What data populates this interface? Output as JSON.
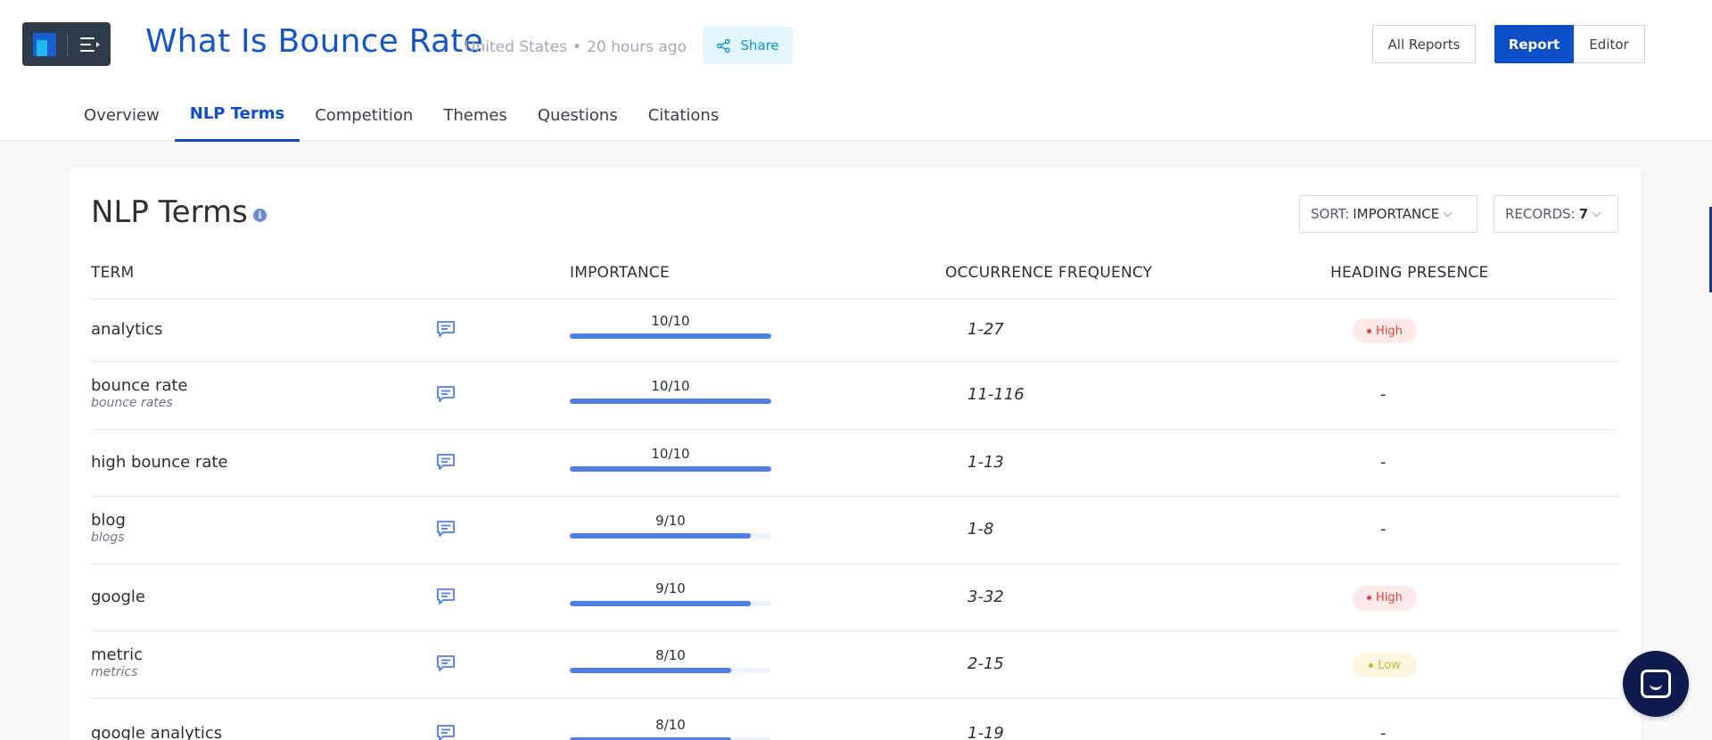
{
  "header": {
    "title": "What Is Bounce Rate",
    "location": "United States",
    "separator": "•",
    "time_ago": "20 hours ago",
    "share_label": "Share",
    "all_reports_label": "All Reports",
    "report_label": "Report",
    "editor_label": "Editor"
  },
  "tabs": [
    {
      "label": "Overview",
      "active": false
    },
    {
      "label": "NLP Terms",
      "active": true
    },
    {
      "label": "Competition",
      "active": false
    },
    {
      "label": "Themes",
      "active": false
    },
    {
      "label": "Questions",
      "active": false
    },
    {
      "label": "Citations",
      "active": false
    }
  ],
  "panel": {
    "title": "NLP Terms",
    "info_glyph": "i",
    "sort_label": "SORT:",
    "sort_value": "IMPORTANCE",
    "records_label": "RECORDS:",
    "records_value": "7"
  },
  "table": {
    "columns": [
      "TERM",
      "IMPORTANCE",
      "OCCURRENCE FREQUENCY",
      "HEADING PRESENCE"
    ],
    "rows": [
      {
        "term": "analytics",
        "variant": "",
        "importance": "10/10",
        "importance_fraction": 1.0,
        "frequency": "1-27",
        "heading": "High"
      },
      {
        "term": "bounce rate",
        "variant": "bounce rates",
        "importance": "10/10",
        "importance_fraction": 1.0,
        "frequency": "11-116",
        "heading": "-"
      },
      {
        "term": "high bounce rate",
        "variant": "",
        "importance": "10/10",
        "importance_fraction": 1.0,
        "frequency": "1-13",
        "heading": "-"
      },
      {
        "term": "blog",
        "variant": "blogs",
        "importance": "9/10",
        "importance_fraction": 0.9,
        "frequency": "1-8",
        "heading": "-"
      },
      {
        "term": "google",
        "variant": "",
        "importance": "9/10",
        "importance_fraction": 0.9,
        "frequency": "3-32",
        "heading": "High"
      },
      {
        "term": "metric",
        "variant": "metrics",
        "importance": "8/10",
        "importance_fraction": 0.8,
        "frequency": "2-15",
        "heading": "Low"
      },
      {
        "term": "google analytics",
        "variant": "",
        "importance": "8/10",
        "importance_fraction": 0.8,
        "frequency": "1-19",
        "heading": "-"
      }
    ]
  },
  "colors": {
    "brand_blue": "#0d4fc9",
    "bar_fill": "#4f7de6",
    "high_badge": "#e0453c",
    "low_badge": "#c9b541"
  },
  "icons": {
    "logo": "logo-icon",
    "menu": "menu-icon",
    "share": "share-icon",
    "comment": "comment-icon",
    "info": "info-icon",
    "chat": "chat-icon"
  }
}
